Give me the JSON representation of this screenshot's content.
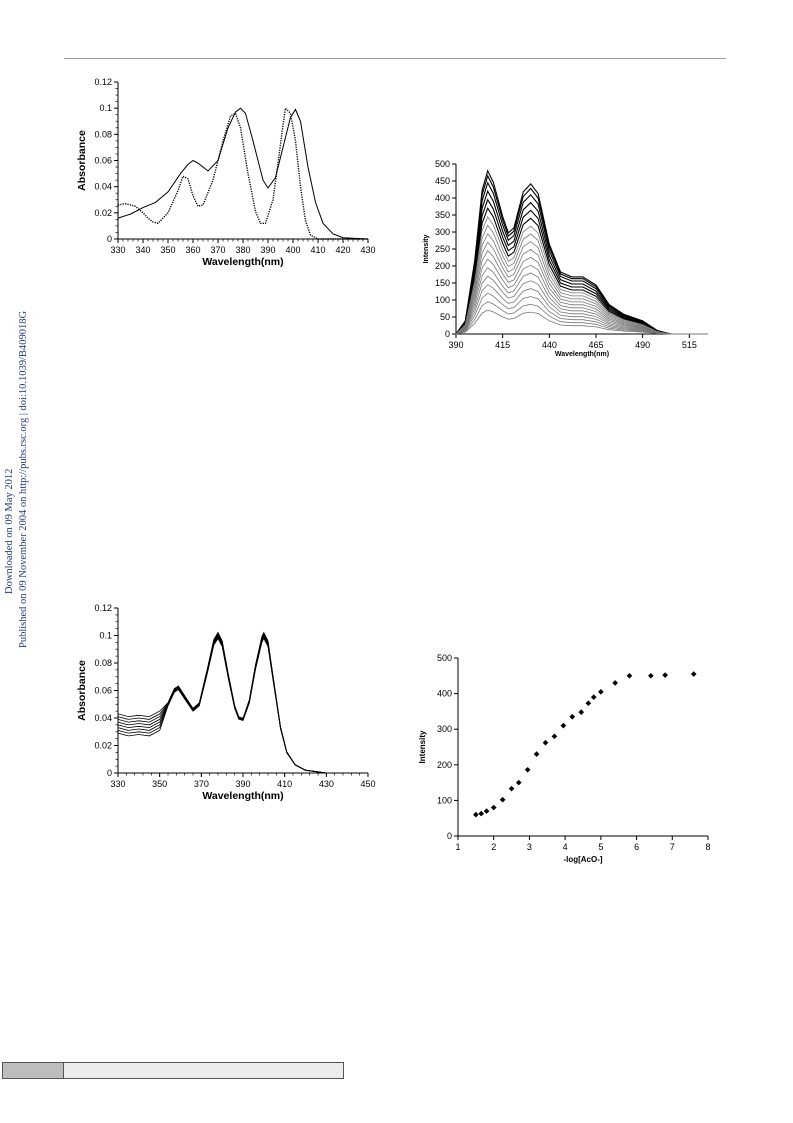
{
  "side_note": {
    "line1": "Downloaded on 09 May 2012",
    "line2": "Published on 09 November 2004 on http://pubs.rsc.org | doi:10.1039/B409018G"
  },
  "colors": {
    "axis": "#000000",
    "curve": "#000000",
    "gray_curve": "#777777",
    "side_note": "#1f3a8a"
  },
  "chart_data": [
    {
      "type": "line",
      "xlabel": "Wavelength(nm)",
      "ylabel": "Absorbance",
      "xlim": [
        330,
        430
      ],
      "ylim": [
        0,
        0.12
      ],
      "x_ticks": [
        "330",
        "340",
        "350",
        "360",
        "370",
        "380",
        "390",
        "400",
        "410",
        "420",
        "430"
      ],
      "y_ticks": [
        "0",
        "0.02",
        "0.04",
        "0.06",
        "0.08",
        "0.1",
        "0.12"
      ],
      "series": [
        {
          "style": "solid",
          "points": [
            [
              330,
              0.016
            ],
            [
              335,
              0.019
            ],
            [
              340,
              0.024
            ],
            [
              345,
              0.028
            ],
            [
              350,
              0.036
            ],
            [
              355,
              0.05
            ],
            [
              358,
              0.057
            ],
            [
              360,
              0.06
            ],
            [
              362,
              0.058
            ],
            [
              366,
              0.052
            ],
            [
              370,
              0.06
            ],
            [
              374,
              0.085
            ],
            [
              377,
              0.097
            ],
            [
              379,
              0.1
            ],
            [
              381,
              0.096
            ],
            [
              384,
              0.075
            ],
            [
              388,
              0.045
            ],
            [
              390,
              0.039
            ],
            [
              393,
              0.047
            ],
            [
              396,
              0.07
            ],
            [
              399,
              0.093
            ],
            [
              401,
              0.099
            ],
            [
              403,
              0.09
            ],
            [
              406,
              0.055
            ],
            [
              409,
              0.028
            ],
            [
              412,
              0.012
            ],
            [
              416,
              0.004
            ],
            [
              420,
              0.001
            ],
            [
              430,
              0.0
            ]
          ]
        },
        {
          "style": "dotted",
          "points": [
            [
              330,
              0.026
            ],
            [
              333,
              0.027
            ],
            [
              337,
              0.025
            ],
            [
              340,
              0.02
            ],
            [
              342,
              0.016
            ],
            [
              344,
              0.013
            ],
            [
              346,
              0.012
            ],
            [
              350,
              0.02
            ],
            [
              354,
              0.037
            ],
            [
              356,
              0.048
            ],
            [
              358,
              0.046
            ],
            [
              360,
              0.033
            ],
            [
              362,
              0.025
            ],
            [
              364,
              0.026
            ],
            [
              368,
              0.045
            ],
            [
              372,
              0.075
            ],
            [
              375,
              0.094
            ],
            [
              377,
              0.096
            ],
            [
              379,
              0.085
            ],
            [
              382,
              0.05
            ],
            [
              385,
              0.021
            ],
            [
              387,
              0.012
            ],
            [
              389,
              0.012
            ],
            [
              392,
              0.03
            ],
            [
              394,
              0.058
            ],
            [
              396,
              0.087
            ],
            [
              397,
              0.1
            ],
            [
              399,
              0.096
            ],
            [
              401,
              0.075
            ],
            [
              403,
              0.04
            ],
            [
              405,
              0.014
            ],
            [
              407,
              0.003
            ],
            [
              410,
              0.0
            ],
            [
              430,
              0.0
            ]
          ]
        }
      ]
    },
    {
      "type": "line",
      "xlabel": "Wavelength(nm)",
      "ylabel": "Intensity",
      "xlim": [
        390,
        525
      ],
      "ylim": [
        0,
        500
      ],
      "x_ticks": [
        "390",
        "415",
        "440",
        "465",
        "490",
        "515"
      ],
      "y_ticks": [
        "0",
        "50",
        "100",
        "150",
        "200",
        "250",
        "300",
        "350",
        "400",
        "450",
        "500"
      ],
      "peak_values": [
        480,
        465,
        445,
        420,
        395,
        370,
        345,
        320,
        295,
        270,
        245,
        220,
        195,
        170,
        145,
        120,
        95,
        70
      ],
      "base_shape": [
        [
          390,
          0.0
        ],
        [
          395,
          0.08
        ],
        [
          400,
          0.45
        ],
        [
          404,
          0.88
        ],
        [
          407,
          1.0
        ],
        [
          410,
          0.93
        ],
        [
          415,
          0.72
        ],
        [
          418,
          0.62
        ],
        [
          421,
          0.65
        ],
        [
          426,
          0.87
        ],
        [
          430,
          0.92
        ],
        [
          434,
          0.86
        ],
        [
          440,
          0.55
        ],
        [
          446,
          0.38
        ],
        [
          452,
          0.35
        ],
        [
          458,
          0.35
        ],
        [
          465,
          0.3
        ],
        [
          472,
          0.18
        ],
        [
          480,
          0.12
        ],
        [
          490,
          0.08
        ],
        [
          498,
          0.02
        ],
        [
          505,
          0.0
        ],
        [
          525,
          0.0
        ]
      ]
    },
    {
      "type": "line",
      "xlabel": "Wavelength(nm)",
      "ylabel": "Absorbance",
      "xlim": [
        330,
        450
      ],
      "ylim": [
        0,
        0.12
      ],
      "x_ticks": [
        "330",
        "350",
        "370",
        "390",
        "410",
        "430",
        "450"
      ],
      "y_ticks": [
        "0",
        "0.02",
        "0.04",
        "0.06",
        "0.08",
        "0.1",
        "0.12"
      ],
      "series_count": 8,
      "base_shape": [
        [
          330,
          0.036
        ],
        [
          335,
          0.034
        ],
        [
          340,
          0.035
        ],
        [
          345,
          0.034
        ],
        [
          350,
          0.038
        ],
        [
          354,
          0.05
        ],
        [
          357,
          0.06
        ],
        [
          359,
          0.062
        ],
        [
          362,
          0.055
        ],
        [
          366,
          0.046
        ],
        [
          369,
          0.05
        ],
        [
          373,
          0.075
        ],
        [
          376,
          0.095
        ],
        [
          378,
          0.1
        ],
        [
          380,
          0.094
        ],
        [
          383,
          0.07
        ],
        [
          386,
          0.048
        ],
        [
          388,
          0.04
        ],
        [
          390,
          0.039
        ],
        [
          393,
          0.052
        ],
        [
          396,
          0.077
        ],
        [
          399,
          0.097
        ],
        [
          400,
          0.1
        ],
        [
          402,
          0.094
        ],
        [
          405,
          0.063
        ],
        [
          408,
          0.033
        ],
        [
          411,
          0.015
        ],
        [
          415,
          0.006
        ],
        [
          420,
          0.002
        ],
        [
          430,
          0.0
        ],
        [
          450,
          0.0
        ]
      ]
    },
    {
      "type": "scatter",
      "xlabel": "-log[AcO-]",
      "ylabel": "Intensity",
      "xlim": [
        1,
        8
      ],
      "ylim": [
        0,
        500
      ],
      "x_ticks": [
        "1",
        "2",
        "3",
        "4",
        "5",
        "6",
        "7",
        "8"
      ],
      "y_ticks": [
        "0",
        "100",
        "200",
        "300",
        "400",
        "500"
      ],
      "points": [
        [
          1.5,
          60
        ],
        [
          1.65,
          63
        ],
        [
          1.8,
          70
        ],
        [
          2.0,
          80
        ],
        [
          2.25,
          102
        ],
        [
          2.5,
          133
        ],
        [
          2.7,
          150
        ],
        [
          2.95,
          186
        ],
        [
          3.2,
          230
        ],
        [
          3.45,
          262
        ],
        [
          3.7,
          280
        ],
        [
          3.95,
          310
        ],
        [
          4.2,
          335
        ],
        [
          4.45,
          348
        ],
        [
          4.65,
          373
        ],
        [
          4.8,
          390
        ],
        [
          5.0,
          405
        ],
        [
          5.4,
          430
        ],
        [
          5.8,
          450
        ],
        [
          6.4,
          450
        ],
        [
          6.8,
          452
        ],
        [
          7.6,
          455
        ]
      ]
    }
  ]
}
